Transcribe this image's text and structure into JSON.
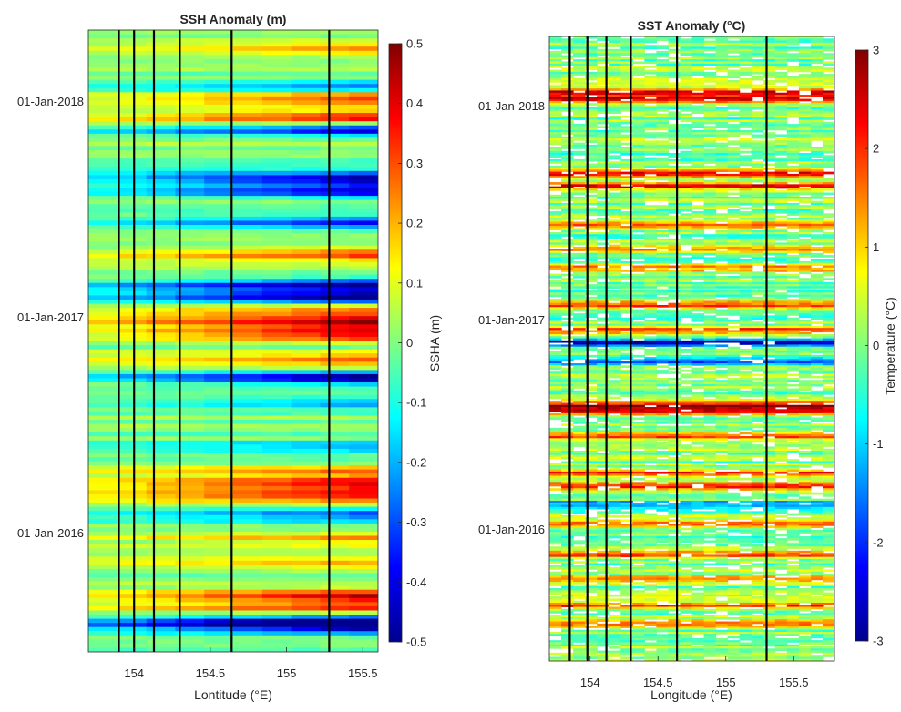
{
  "colormap": [
    "#00008f",
    "#0000ff",
    "#0080ff",
    "#00ffff",
    "#80ff80",
    "#ffff00",
    "#ff8000",
    "#ff0000",
    "#800000"
  ],
  "chart_data": [
    {
      "type": "heatmap",
      "title": "SSH Anomaly (m)",
      "xlabel": "Lontitude (°E)",
      "ylabel": "",
      "xlim": [
        153.7,
        155.6
      ],
      "xticks": [
        154,
        154.5,
        155,
        155.5
      ],
      "xtick_labels": [
        "154",
        "154.5",
        "155",
        "155.5"
      ],
      "ytick_labels": [
        "01-Jan-2018",
        "01-Jan-2017",
        "01-Jan-2016"
      ],
      "colorbar": {
        "label": "SSHA (m)",
        "clim": [
          -0.5,
          0.5
        ],
        "ticks": [
          0.5,
          0.4,
          0.3,
          0.2,
          0.1,
          0,
          -0.1,
          -0.2,
          -0.3,
          -0.4,
          -0.5
        ],
        "tick_labels": [
          "0.5",
          "0.4",
          "0.3",
          "0.2",
          "0.1",
          "0",
          "-0.1",
          "-0.2",
          "-0.3",
          "-0.4",
          "-0.5"
        ]
      },
      "vertical_lines_lon": [
        153.9,
        154.0,
        154.13,
        154.3,
        154.64,
        155.28
      ],
      "bands": [
        {
          "t": 0.03,
          "v": 0.22
        },
        {
          "t": 0.09,
          "v": -0.22
        },
        {
          "t": 0.11,
          "v": 0.32
        },
        {
          "t": 0.14,
          "v": 0.36
        },
        {
          "t": 0.16,
          "v": -0.36
        },
        {
          "t": 0.24,
          "v": -0.44
        },
        {
          "t": 0.26,
          "v": -0.38
        },
        {
          "t": 0.31,
          "v": -0.32
        },
        {
          "t": 0.36,
          "v": 0.26
        },
        {
          "t": 0.41,
          "v": -0.42
        },
        {
          "t": 0.43,
          "v": -0.48
        },
        {
          "t": 0.45,
          "v": 0.24
        },
        {
          "t": 0.47,
          "v": 0.42
        },
        {
          "t": 0.49,
          "v": 0.38
        },
        {
          "t": 0.53,
          "v": 0.22
        },
        {
          "t": 0.56,
          "v": -0.46
        },
        {
          "t": 0.6,
          "v": -0.22
        },
        {
          "t": 0.67,
          "v": -0.18
        },
        {
          "t": 0.71,
          "v": 0.2
        },
        {
          "t": 0.73,
          "v": 0.36
        },
        {
          "t": 0.75,
          "v": 0.3
        },
        {
          "t": 0.78,
          "v": -0.28
        },
        {
          "t": 0.82,
          "v": 0.18
        },
        {
          "t": 0.86,
          "v": 0.16
        },
        {
          "t": 0.91,
          "v": 0.38
        },
        {
          "t": 0.93,
          "v": 0.3
        },
        {
          "t": 0.95,
          "v": -0.44
        },
        {
          "t": 0.96,
          "v": -0.38
        }
      ]
    },
    {
      "type": "heatmap",
      "title": "SST Anomaly (°C)",
      "xlabel": "Longitude (°E)",
      "ylabel": "",
      "xlim": [
        153.7,
        155.8
      ],
      "xticks": [
        154,
        154.5,
        155,
        155.5
      ],
      "xtick_labels": [
        "154",
        "154.5",
        "155",
        "155.5"
      ],
      "ytick_labels": [
        "01-Jan-2018",
        "01-Jan-2017",
        "01-Jan-2016"
      ],
      "colorbar": {
        "label": "Temperature (°C)",
        "clim": [
          -3,
          3
        ],
        "ticks": [
          3,
          2,
          1,
          0,
          -1,
          -2,
          -3
        ],
        "tick_labels": [
          "3",
          "2",
          "1",
          "0",
          "-1",
          "-2",
          "-3"
        ]
      },
      "vertical_lines_lon": [
        153.85,
        153.98,
        154.12,
        154.3,
        154.64,
        155.3
      ],
      "bands": [
        {
          "t": 0.09,
          "v": 2.6
        },
        {
          "t": 0.1,
          "v": 2.2
        },
        {
          "t": 0.22,
          "v": 2.8
        },
        {
          "t": 0.24,
          "v": 2.3
        },
        {
          "t": 0.3,
          "v": 1.6
        },
        {
          "t": 0.34,
          "v": 1.7
        },
        {
          "t": 0.37,
          "v": 1.5
        },
        {
          "t": 0.43,
          "v": 2.0
        },
        {
          "t": 0.47,
          "v": 1.8
        },
        {
          "t": 0.49,
          "v": -2.8
        },
        {
          "t": 0.52,
          "v": -1.5
        },
        {
          "t": 0.59,
          "v": 2.4
        },
        {
          "t": 0.6,
          "v": 2.6
        },
        {
          "t": 0.64,
          "v": 1.8
        },
        {
          "t": 0.7,
          "v": 2.0
        },
        {
          "t": 0.72,
          "v": 2.2
        },
        {
          "t": 0.75,
          "v": -1.5
        },
        {
          "t": 0.78,
          "v": 1.6
        },
        {
          "t": 0.83,
          "v": 1.8
        },
        {
          "t": 0.87,
          "v": 1.6
        },
        {
          "t": 0.91,
          "v": 1.8
        },
        {
          "t": 0.94,
          "v": 1.7
        }
      ]
    }
  ]
}
